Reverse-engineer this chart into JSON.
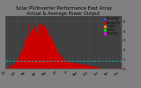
{
  "title": "Solar PV/Inverter Performance East Array\nActual & Average Power Output",
  "title_fontsize": 3.8,
  "bg_color": "#808080",
  "plot_bg_color": "#404040",
  "grid_color": "#888888",
  "bar_color": "#cc0000",
  "avg_line_color": "#00cccc",
  "legend_entries": [
    {
      "label": "Actual Pwr",
      "color": "#4444ff"
    },
    {
      "label": "Average Pwr",
      "color": "#cc0000"
    },
    {
      "label": "+StdDev",
      "color": "#ff8800"
    },
    {
      "label": "-StdDev",
      "color": "#00cc00"
    },
    {
      "label": "Target Pwr",
      "color": "#ff00ff"
    }
  ],
  "num_bars": 200,
  "peak_index": 55,
  "avg_value": 0.17,
  "ylim": [
    0,
    1.1
  ],
  "ytick_labels": [
    "5",
    "4",
    "3",
    "2",
    "1"
  ],
  "bar_values_seed": 12
}
